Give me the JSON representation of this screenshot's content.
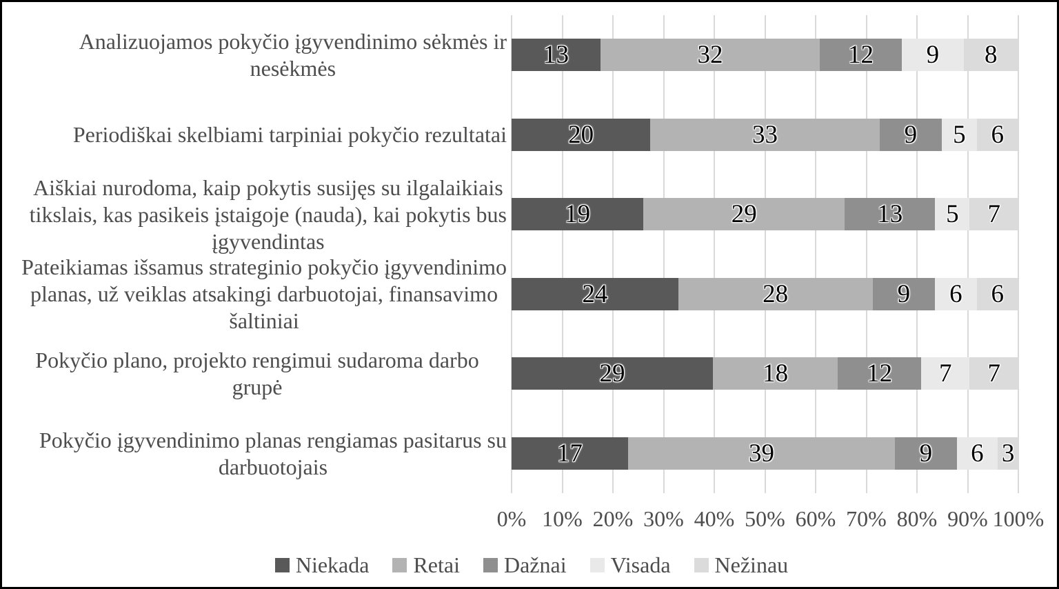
{
  "chart_data": {
    "type": "bar",
    "subtype": "100-percent-stacked-horizontal",
    "title": "",
    "xlabel": "",
    "ylabel": "",
    "grid": true,
    "legend_position": "bottom",
    "x_axis": {
      "min": 0,
      "max": 100,
      "unit": "%",
      "ticks": [
        "0%",
        "10%",
        "20%",
        "30%",
        "40%",
        "50%",
        "60%",
        "70%",
        "80%",
        "90%",
        "100%"
      ]
    },
    "categories": [
      "Analizuojamos pokyčio įgyvendinimo sėkmės ir\nnesėkmės",
      "Periodiškai skelbiami tarpiniai pokyčio rezultatai",
      "Aiškiai nurodoma, kaip pokytis susijęs su ilgalaikiais\ntikslais, kas pasikeis įstaigoje (nauda), kai pokytis bus\nįgyvendintas",
      "Pateikiamas išsamus strateginio pokyčio įgyvendinimo\nplanas, už veiklas atsakingi darbuotojai, finansavimo\nšaltiniai",
      "Pokyčio plano, projekto rengimui sudaroma darbo grupė",
      "Pokyčio įgyvendinimo planas rengiamas pasitarus su\ndarbuotojais"
    ],
    "series": [
      {
        "name": "Niekada",
        "color": "#595959",
        "values": [
          13,
          20,
          19,
          24,
          29,
          17
        ]
      },
      {
        "name": "Retai",
        "color": "#b3b3b3",
        "values": [
          32,
          33,
          29,
          28,
          18,
          39
        ]
      },
      {
        "name": "Dažnai",
        "color": "#8f8f8f",
        "values": [
          12,
          9,
          13,
          9,
          12,
          9
        ]
      },
      {
        "name": "Visada",
        "color": "#e9e9e9",
        "values": [
          9,
          5,
          5,
          6,
          7,
          6
        ]
      },
      {
        "name": "Nežinau",
        "color": "#dbdbdb",
        "values": [
          8,
          6,
          7,
          6,
          7,
          3
        ]
      }
    ],
    "colors": {
      "gridline": "#d9d9d9",
      "axis_text": "#4d4d4d",
      "data_label": "#000000",
      "background": "#ffffff",
      "border": "#000000"
    }
  }
}
